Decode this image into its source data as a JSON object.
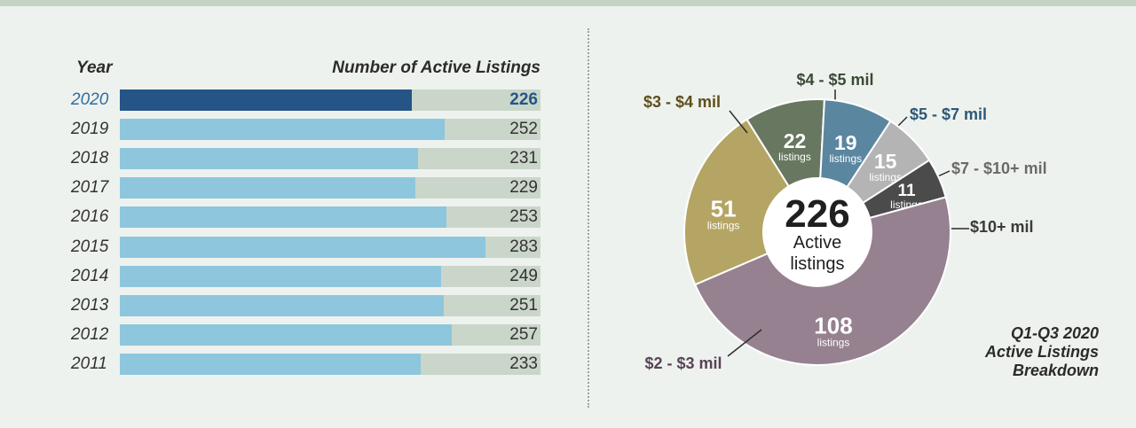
{
  "chart_data": [
    {
      "type": "bar",
      "orientation": "horizontal",
      "category_header": "Year",
      "value_header": "Number of Active Listings",
      "xlim": [
        0,
        326
      ],
      "highlight": "2020",
      "colors": {
        "bar": "#8ec6de",
        "highlight_bar": "#255587",
        "track": "#c9d6c9"
      },
      "categories": [
        "2020",
        "2019",
        "2018",
        "2017",
        "2016",
        "2015",
        "2014",
        "2013",
        "2012",
        "2011"
      ],
      "values": [
        226,
        252,
        231,
        229,
        253,
        283,
        249,
        251,
        257,
        233
      ]
    },
    {
      "type": "pie",
      "style": "donut",
      "title_lines": [
        "Q1-Q3 2020",
        "Active Listings",
        "Breakdown"
      ],
      "center": {
        "value": "226",
        "lines": [
          "Active",
          "listings"
        ]
      },
      "unit_label": "listings",
      "slices": [
        {
          "label": "$4 - $5 mil",
          "value": 22,
          "color": "#687760",
          "label_color": "#3a4a34"
        },
        {
          "label": "$5 - $7 mil",
          "value": 19,
          "color": "#5b86a0",
          "label_color": "#2d5878"
        },
        {
          "label": "$7 - $10+ mil",
          "value": 15,
          "color": "#b4b4b4",
          "label_color": "#6a6a6a"
        },
        {
          "label": "$10+ mil",
          "value": 11,
          "color": "#4b4b4b",
          "label_color": "#3a3a3a"
        },
        {
          "label": "$2 - $3 mil",
          "value": 108,
          "color": "#968190",
          "label_color": "#5a4258"
        },
        {
          "label": "$3 - $4 mil",
          "value": 51,
          "color": "#b4a564",
          "label_color": "#5e4f1c"
        }
      ]
    }
  ]
}
